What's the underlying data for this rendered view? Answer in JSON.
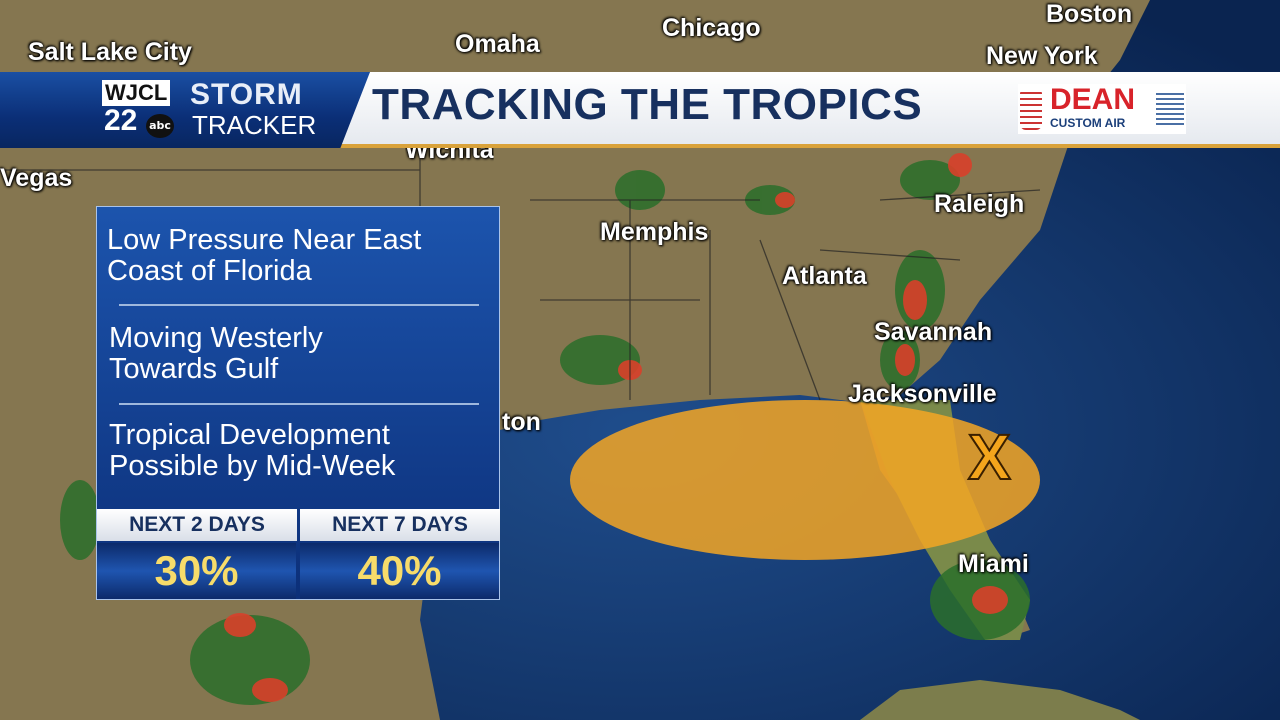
{
  "header": {
    "station_logo": {
      "call_letters": "WJCL",
      "channel": "22",
      "network": "abc",
      "brand_top": "STORM",
      "brand_bottom": "TRACKER"
    },
    "title": "TRACKING THE TROPICS",
    "sponsor": {
      "name": "DEAN",
      "tagline": "CUSTOM AIR"
    },
    "colors": {
      "primary_blue": "#0b2f77",
      "accent_gold": "#d9a23a",
      "title_text": "#17305f"
    }
  },
  "cities": [
    "Salt Lake City",
    "Omaha",
    "Chicago",
    "Boston",
    "New York",
    "Wichita",
    "Vegas",
    "Raleigh",
    "Memphis",
    "Atlanta",
    "Savannah",
    "Jacksonville",
    "ton",
    "Miami"
  ],
  "info_panel": {
    "lines": [
      "Low Pressure Near East",
      "Coast of Florida",
      "Moving Westerly",
      "Towards Gulf",
      "Tropical Development",
      "Possible by Mid-Week"
    ],
    "outlook": [
      {
        "label": "NEXT 2 DAYS",
        "value": "30%"
      },
      {
        "label": "NEXT 7 DAYS",
        "value": "40%"
      }
    ]
  },
  "map": {
    "development_area_color": "#f5a623",
    "disturbance_marker": "X",
    "land_color": "#8a7a4e",
    "ocean_color": "#0e2f63"
  }
}
